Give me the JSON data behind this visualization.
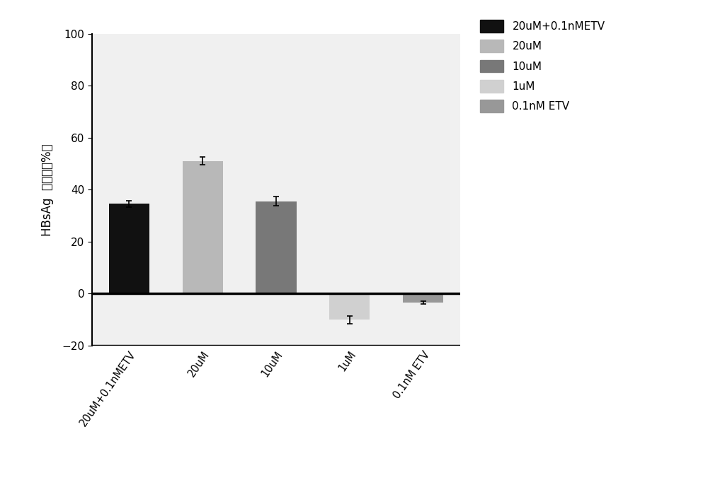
{
  "categories": [
    "20uM+0.1nMETV",
    "20uM",
    "10uM",
    "1uM",
    "0.1nM ETV"
  ],
  "values": [
    34.5,
    51.0,
    35.5,
    -10.0,
    -3.5
  ],
  "errors": [
    1.2,
    1.5,
    1.8,
    1.5,
    0.6
  ],
  "bar_colors": [
    "#111111",
    "#b8b8b8",
    "#787878",
    "#d0d0d0",
    "#989898"
  ],
  "ylabel_part1": "HBsAg",
  "ylabel_part2": "抑制率（%）",
  "ylim": [
    -20,
    100
  ],
  "yticks": [
    -20,
    0,
    20,
    40,
    60,
    80,
    100
  ],
  "legend_labels": [
    "20uM+0.1nMETV",
    "20uM",
    "10uM",
    "1uM",
    "0.1nM ETV"
  ],
  "legend_colors": [
    "#111111",
    "#b8b8b8",
    "#787878",
    "#d0d0d0",
    "#989898"
  ],
  "figsize": [
    10.0,
    6.79
  ],
  "dpi": 100,
  "bg_color": "#f0f0f0"
}
